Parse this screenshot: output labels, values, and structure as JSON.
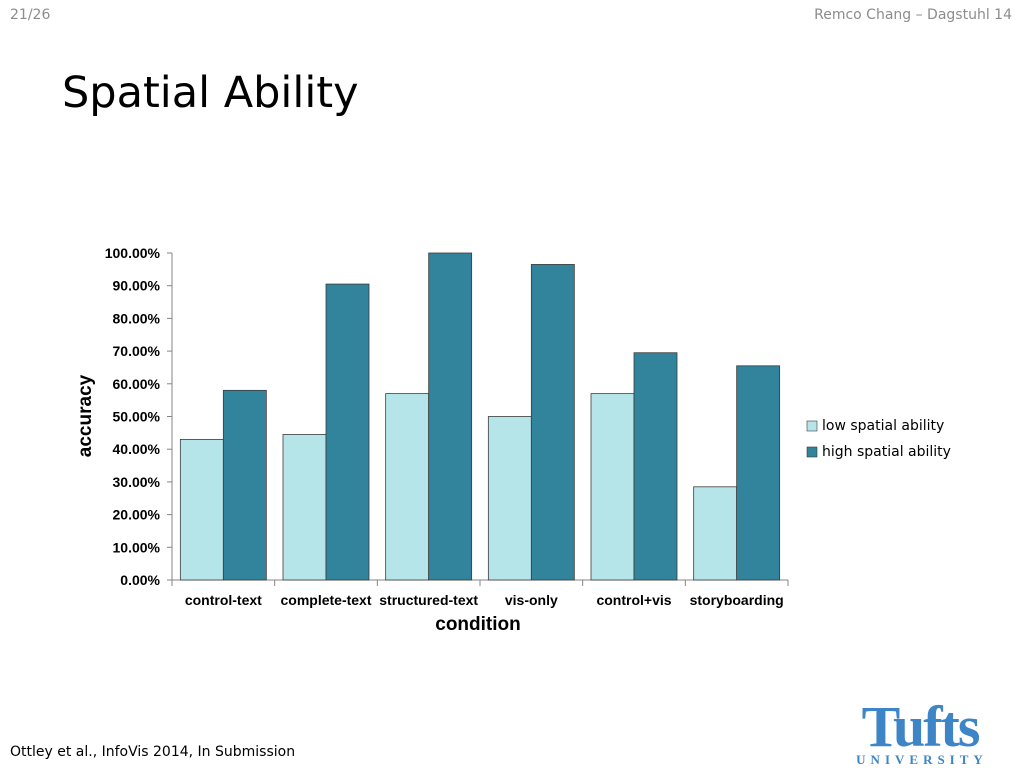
{
  "header": {
    "slide_number": "21/26",
    "right_text": "Remco Chang – Dagstuhl 14"
  },
  "slide": {
    "title": "Spatial Ability"
  },
  "footer": {
    "citation": "Ottley et al., InfoVis 2014, In Submission"
  },
  "logo": {
    "main": "Tufts",
    "sub": "UNIVERSITY",
    "color": "#3d85c6"
  },
  "chart_data": {
    "type": "bar",
    "title": "",
    "xlabel": "condition",
    "ylabel": "accuracy",
    "ylim": [
      0,
      100
    ],
    "yticks": [
      "0.00%",
      "10.00%",
      "20.00%",
      "30.00%",
      "40.00%",
      "50.00%",
      "60.00%",
      "70.00%",
      "80.00%",
      "90.00%",
      "100.00%"
    ],
    "categories": [
      "control-text",
      "complete-text",
      "structured-text",
      "vis-only",
      "control+vis",
      "storyboarding"
    ],
    "series": [
      {
        "name": "low spatial ability",
        "color": "#b5e5e9",
        "values": [
          43,
          44.5,
          57,
          50,
          57,
          28.5
        ]
      },
      {
        "name": "high spatial ability",
        "color": "#31849b",
        "values": [
          58,
          90.5,
          100,
          96.5,
          69.5,
          65.5
        ]
      }
    ],
    "legend_position": "right",
    "grid": false
  }
}
